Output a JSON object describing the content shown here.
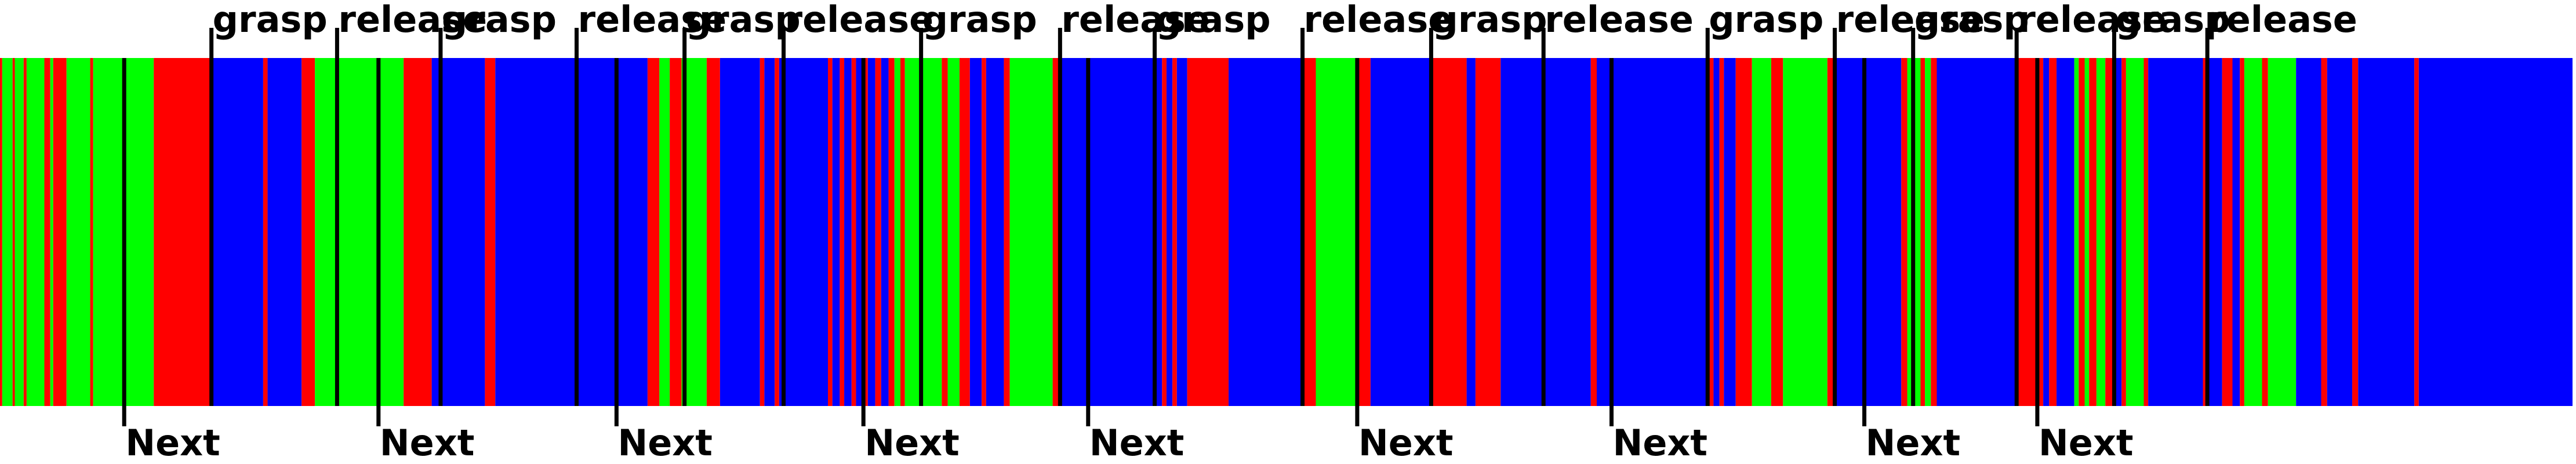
{
  "timeline": {
    "colors": {
      "blue": "#0000ff",
      "green": "#00ff00",
      "red": "#ff0000",
      "marker": "#000000",
      "background": "#ffffff"
    },
    "segments": [
      {
        "start": 0.0,
        "end": 0.15,
        "color": "red"
      },
      {
        "start": 0.15,
        "end": 0.85,
        "color": "green"
      },
      {
        "start": 0.85,
        "end": 1.0,
        "color": "red"
      },
      {
        "start": 1.0,
        "end": 1.6,
        "color": "green"
      },
      {
        "start": 1.6,
        "end": 1.8,
        "color": "red"
      },
      {
        "start": 1.8,
        "end": 3.0,
        "color": "green"
      },
      {
        "start": 3.0,
        "end": 3.4,
        "color": "red"
      },
      {
        "start": 3.4,
        "end": 3.6,
        "color": "green"
      },
      {
        "start": 3.6,
        "end": 4.5,
        "color": "red"
      },
      {
        "start": 4.5,
        "end": 6.1,
        "color": "green"
      },
      {
        "start": 6.1,
        "end": 6.3,
        "color": "red"
      },
      {
        "start": 6.3,
        "end": 10.4,
        "color": "green"
      },
      {
        "start": 10.4,
        "end": 14.3,
        "color": "red"
      },
      {
        "start": 14.3,
        "end": 17.8,
        "color": "blue"
      },
      {
        "start": 17.8,
        "end": 18.1,
        "color": "red"
      },
      {
        "start": 18.1,
        "end": 20.4,
        "color": "blue"
      },
      {
        "start": 20.4,
        "end": 21.3,
        "color": "red"
      },
      {
        "start": 21.3,
        "end": 27.3,
        "color": "green"
      },
      {
        "start": 27.3,
        "end": 29.2,
        "color": "red"
      },
      {
        "start": 29.2,
        "end": 32.8,
        "color": "blue"
      },
      {
        "start": 32.8,
        "end": 33.5,
        "color": "red"
      },
      {
        "start": 33.5,
        "end": 43.8,
        "color": "blue"
      },
      {
        "start": 43.8,
        "end": 44.6,
        "color": "red"
      },
      {
        "start": 44.6,
        "end": 45.3,
        "color": "green"
      },
      {
        "start": 45.3,
        "end": 46.1,
        "color": "red"
      },
      {
        "start": 46.1,
        "end": 47.8,
        "color": "green"
      },
      {
        "start": 47.8,
        "end": 48.7,
        "color": "red"
      },
      {
        "start": 48.7,
        "end": 51.4,
        "color": "blue"
      },
      {
        "start": 51.4,
        "end": 51.7,
        "color": "red"
      },
      {
        "start": 51.7,
        "end": 52.4,
        "color": "blue"
      },
      {
        "start": 52.4,
        "end": 52.7,
        "color": "red"
      },
      {
        "start": 52.7,
        "end": 56.0,
        "color": "blue"
      },
      {
        "start": 56.0,
        "end": 56.3,
        "color": "red"
      },
      {
        "start": 56.3,
        "end": 56.8,
        "color": "blue"
      },
      {
        "start": 56.8,
        "end": 57.1,
        "color": "red"
      },
      {
        "start": 57.1,
        "end": 57.6,
        "color": "blue"
      },
      {
        "start": 57.6,
        "end": 57.9,
        "color": "red"
      },
      {
        "start": 57.9,
        "end": 58.4,
        "color": "blue"
      },
      {
        "start": 58.4,
        "end": 58.7,
        "color": "red"
      },
      {
        "start": 58.7,
        "end": 59.2,
        "color": "blue"
      },
      {
        "start": 59.2,
        "end": 59.6,
        "color": "red"
      },
      {
        "start": 59.6,
        "end": 60.1,
        "color": "blue"
      },
      {
        "start": 60.1,
        "end": 60.5,
        "color": "red"
      },
      {
        "start": 60.5,
        "end": 60.9,
        "color": "green"
      },
      {
        "start": 60.9,
        "end": 61.2,
        "color": "red"
      },
      {
        "start": 61.2,
        "end": 63.7,
        "color": "green"
      },
      {
        "start": 63.7,
        "end": 64.1,
        "color": "red"
      },
      {
        "start": 64.1,
        "end": 64.9,
        "color": "green"
      },
      {
        "start": 64.9,
        "end": 65.6,
        "color": "red"
      },
      {
        "start": 65.6,
        "end": 66.4,
        "color": "blue"
      },
      {
        "start": 66.4,
        "end": 66.7,
        "color": "red"
      },
      {
        "start": 66.7,
        "end": 67.9,
        "color": "blue"
      },
      {
        "start": 67.9,
        "end": 68.3,
        "color": "red"
      },
      {
        "start": 68.3,
        "end": 71.2,
        "color": "green"
      },
      {
        "start": 71.2,
        "end": 71.7,
        "color": "red"
      },
      {
        "start": 71.7,
        "end": 78.6,
        "color": "blue"
      },
      {
        "start": 78.6,
        "end": 78.9,
        "color": "red"
      },
      {
        "start": 78.9,
        "end": 79.3,
        "color": "blue"
      },
      {
        "start": 79.3,
        "end": 79.6,
        "color": "red"
      },
      {
        "start": 79.6,
        "end": 80.3,
        "color": "blue"
      },
      {
        "start": 80.3,
        "end": 83.1,
        "color": "red"
      },
      {
        "start": 83.1,
        "end": 88.0,
        "color": "blue"
      },
      {
        "start": 88.0,
        "end": 89.0,
        "color": "red"
      },
      {
        "start": 89.0,
        "end": 91.8,
        "color": "green"
      },
      {
        "start": 91.8,
        "end": 92.7,
        "color": "red"
      },
      {
        "start": 92.7,
        "end": 96.8,
        "color": "blue"
      },
      {
        "start": 96.8,
        "end": 99.2,
        "color": "red"
      },
      {
        "start": 99.2,
        "end": 99.8,
        "color": "blue"
      },
      {
        "start": 99.8,
        "end": 101.5,
        "color": "red"
      },
      {
        "start": 101.5,
        "end": 107.6,
        "color": "blue"
      },
      {
        "start": 107.6,
        "end": 108.0,
        "color": "red"
      },
      {
        "start": 108.0,
        "end": 115.5,
        "color": "blue"
      },
      {
        "start": 115.5,
        "end": 115.9,
        "color": "red"
      },
      {
        "start": 115.9,
        "end": 116.3,
        "color": "blue"
      },
      {
        "start": 116.3,
        "end": 116.6,
        "color": "red"
      },
      {
        "start": 116.6,
        "end": 117.4,
        "color": "blue"
      },
      {
        "start": 117.4,
        "end": 118.5,
        "color": "red"
      },
      {
        "start": 118.5,
        "end": 119.8,
        "color": "green"
      },
      {
        "start": 119.8,
        "end": 120.6,
        "color": "red"
      },
      {
        "start": 120.6,
        "end": 123.6,
        "color": "green"
      },
      {
        "start": 123.6,
        "end": 124.1,
        "color": "red"
      },
      {
        "start": 124.1,
        "end": 128.6,
        "color": "blue"
      },
      {
        "start": 128.6,
        "end": 129.0,
        "color": "red"
      },
      {
        "start": 129.0,
        "end": 129.9,
        "color": "green"
      },
      {
        "start": 129.9,
        "end": 130.2,
        "color": "red"
      },
      {
        "start": 130.2,
        "end": 130.6,
        "color": "green"
      },
      {
        "start": 130.6,
        "end": 131.0,
        "color": "red"
      },
      {
        "start": 131.0,
        "end": 136.3,
        "color": "blue"
      },
      {
        "start": 136.3,
        "end": 138.2,
        "color": "red"
      },
      {
        "start": 138.2,
        "end": 138.6,
        "color": "blue"
      },
      {
        "start": 138.6,
        "end": 139.1,
        "color": "red"
      },
      {
        "start": 139.1,
        "end": 140.3,
        "color": "blue"
      },
      {
        "start": 140.3,
        "end": 140.6,
        "color": "green"
      },
      {
        "start": 140.6,
        "end": 141.0,
        "color": "red"
      },
      {
        "start": 141.0,
        "end": 141.3,
        "color": "green"
      },
      {
        "start": 141.3,
        "end": 141.8,
        "color": "red"
      },
      {
        "start": 141.8,
        "end": 142.4,
        "color": "green"
      },
      {
        "start": 142.4,
        "end": 143.0,
        "color": "red"
      },
      {
        "start": 143.0,
        "end": 143.5,
        "color": "blue"
      },
      {
        "start": 143.5,
        "end": 143.8,
        "color": "red"
      },
      {
        "start": 143.8,
        "end": 145.0,
        "color": "green"
      },
      {
        "start": 145.0,
        "end": 145.3,
        "color": "red"
      },
      {
        "start": 145.3,
        "end": 149.0,
        "color": "blue"
      },
      {
        "start": 149.0,
        "end": 149.3,
        "color": "red"
      },
      {
        "start": 149.3,
        "end": 150.3,
        "color": "blue"
      },
      {
        "start": 150.3,
        "end": 151.0,
        "color": "red"
      },
      {
        "start": 151.0,
        "end": 151.5,
        "color": "blue"
      },
      {
        "start": 151.5,
        "end": 151.8,
        "color": "red"
      },
      {
        "start": 151.8,
        "end": 153.0,
        "color": "green"
      },
      {
        "start": 153.0,
        "end": 153.4,
        "color": "red"
      },
      {
        "start": 153.4,
        "end": 155.3,
        "color": "green"
      },
      {
        "start": 155.3,
        "end": 157.0,
        "color": "blue"
      },
      {
        "start": 157.0,
        "end": 157.4,
        "color": "red"
      },
      {
        "start": 157.4,
        "end": 159.1,
        "color": "blue"
      },
      {
        "start": 159.1,
        "end": 159.5,
        "color": "red"
      },
      {
        "start": 159.5,
        "end": 163.3,
        "color": "blue"
      },
      {
        "start": 163.3,
        "end": 163.6,
        "color": "red"
      },
      {
        "start": 163.6,
        "end": 174.0,
        "color": "blue"
      }
    ],
    "markers": [
      {
        "x": 8.4,
        "label": "Next",
        "type": "next"
      },
      {
        "x": 14.3,
        "label": "grasp",
        "type": "action"
      },
      {
        "x": 22.8,
        "label": "release",
        "type": "action"
      },
      {
        "x": 25.6,
        "label": "Next",
        "type": "next"
      },
      {
        "x": 29.8,
        "label": "grasp",
        "type": "action"
      },
      {
        "x": 39.0,
        "label": "release",
        "type": "action"
      },
      {
        "x": 41.7,
        "label": "Next",
        "type": "next"
      },
      {
        "x": 46.3,
        "label": "grasp",
        "type": "action"
      },
      {
        "x": 53.0,
        "label": "release",
        "type": "action"
      },
      {
        "x": 58.4,
        "label": "Next",
        "type": "next"
      },
      {
        "x": 62.3,
        "label": "grasp",
        "type": "action"
      },
      {
        "x": 71.7,
        "label": "release",
        "type": "action"
      },
      {
        "x": 73.6,
        "label": "Next",
        "type": "next"
      },
      {
        "x": 78.1,
        "label": "grasp",
        "type": "action"
      },
      {
        "x": 88.1,
        "label": "release",
        "type": "action"
      },
      {
        "x": 91.8,
        "label": "Next",
        "type": "next"
      },
      {
        "x": 96.8,
        "label": "grasp",
        "type": "action"
      },
      {
        "x": 104.4,
        "label": "release",
        "type": "action"
      },
      {
        "x": 109.0,
        "label": "Next",
        "type": "next"
      },
      {
        "x": 115.5,
        "label": "grasp",
        "type": "action"
      },
      {
        "x": 124.1,
        "label": "release",
        "type": "action"
      },
      {
        "x": 126.1,
        "label": "Next",
        "type": "next"
      },
      {
        "x": 129.4,
        "label": "grasp",
        "type": "action"
      },
      {
        "x": 136.4,
        "label": "release",
        "type": "action"
      },
      {
        "x": 137.8,
        "label": "Next",
        "type": "next"
      },
      {
        "x": 143.0,
        "label": "grasp",
        "type": "action"
      },
      {
        "x": 149.3,
        "label": "release",
        "type": "action"
      }
    ]
  }
}
